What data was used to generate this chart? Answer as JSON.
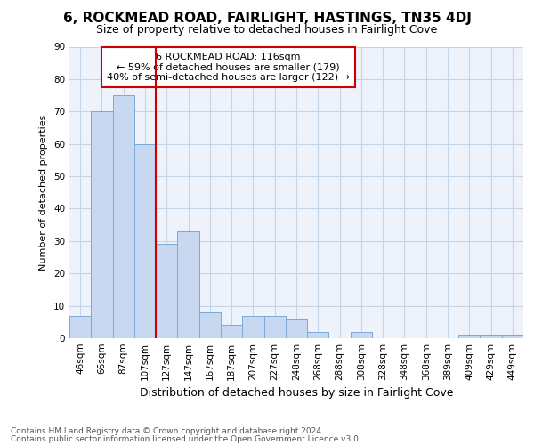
{
  "title1": "6, ROCKMEAD ROAD, FAIRLIGHT, HASTINGS, TN35 4DJ",
  "title2": "Size of property relative to detached houses in Fairlight Cove",
  "xlabel": "Distribution of detached houses by size in Fairlight Cove",
  "ylabel": "Number of detached properties",
  "categories": [
    "46sqm",
    "66sqm",
    "87sqm",
    "107sqm",
    "127sqm",
    "147sqm",
    "167sqm",
    "187sqm",
    "207sqm",
    "227sqm",
    "248sqm",
    "268sqm",
    "288sqm",
    "308sqm",
    "328sqm",
    "348sqm",
    "368sqm",
    "389sqm",
    "409sqm",
    "429sqm",
    "449sqm"
  ],
  "values": [
    7,
    70,
    75,
    60,
    29,
    33,
    8,
    4,
    7,
    7,
    6,
    2,
    0,
    2,
    0,
    0,
    0,
    0,
    1,
    1,
    1
  ],
  "bar_color": "#c8d8f0",
  "bar_edge_color": "#7aaad8",
  "vline_x": 3.5,
  "vline_color": "#cc0000",
  "annotation_title": "6 ROCKMEAD ROAD: 116sqm",
  "annotation_line1": "← 59% of detached houses are smaller (179)",
  "annotation_line2": "40% of semi-detached houses are larger (122) →",
  "annotation_box_color": "#cc0000",
  "ylim": [
    0,
    90
  ],
  "yticks": [
    0,
    10,
    20,
    30,
    40,
    50,
    60,
    70,
    80,
    90
  ],
  "footer1": "Contains HM Land Registry data © Crown copyright and database right 2024.",
  "footer2": "Contains public sector information licensed under the Open Government Licence v3.0.",
  "bg_color": "#eef2fa",
  "grid_color": "#c5d5e8",
  "title1_fontsize": 11,
  "title2_fontsize": 9,
  "ylabel_fontsize": 8,
  "xlabel_fontsize": 9,
  "annotation_fontsize": 8,
  "footer_fontsize": 6.5,
  "tick_fontsize": 7.5
}
